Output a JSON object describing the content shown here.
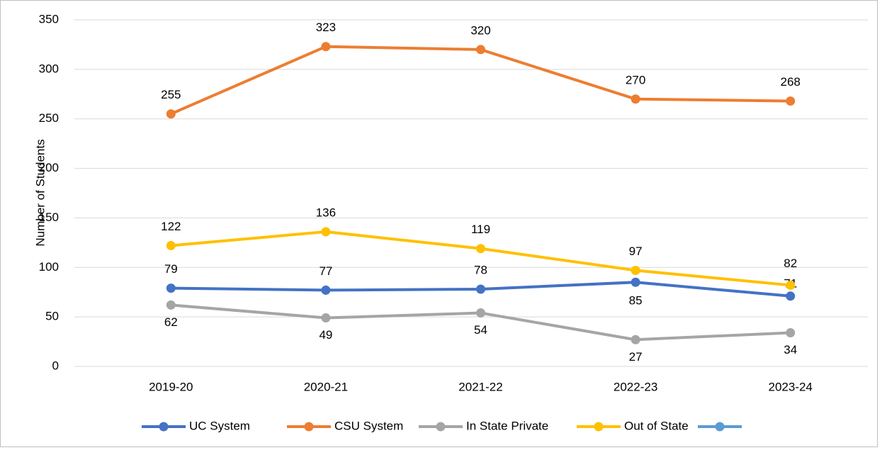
{
  "chart_data": {
    "type": "line",
    "y_label": "Number of Students",
    "categories": [
      "2019-20",
      "2020-21",
      "2021-22",
      "2022-23",
      "2023-24"
    ],
    "series": [
      {
        "name": "UC System",
        "color": "#4472c4",
        "values": [
          79,
          77,
          78,
          85,
          71
        ]
      },
      {
        "name": "CSU System",
        "color": "#ed7d31",
        "values": [
          255,
          323,
          320,
          270,
          268
        ]
      },
      {
        "name": "In State Private",
        "color": "#a5a5a5",
        "values": [
          62,
          49,
          54,
          27,
          34
        ]
      },
      {
        "name": "Out of State",
        "color": "#ffc000",
        "values": [
          122,
          136,
          119,
          97,
          82
        ]
      },
      {
        "name": null,
        "color": "#5b9bd5",
        "values": [
          null,
          null,
          null,
          null,
          null
        ]
      }
    ],
    "ylim": [
      0,
      350
    ],
    "yticks": [
      0,
      50,
      100,
      150,
      200,
      250,
      300,
      350
    ],
    "grid": true
  }
}
